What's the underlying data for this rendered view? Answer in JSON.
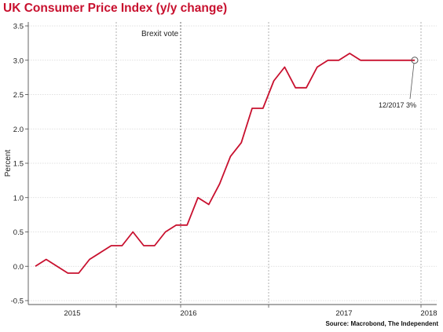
{
  "chart_data": {
    "type": "line",
    "title": "UK Consumer Price Index (y/y change)",
    "xlabel": "",
    "ylabel": "Percent",
    "ylim": [
      -0.5,
      3.5
    ],
    "yticks": [
      "3.5",
      "3.0",
      "2.5",
      "2.0",
      "1.5",
      "1.0",
      "0.5",
      "0.0",
      "-0.5"
    ],
    "ytick_values": [
      3.5,
      3.0,
      2.5,
      2.0,
      1.5,
      1.0,
      0.5,
      0.0,
      -0.5
    ],
    "xticks": [
      {
        "label": "2015",
        "value": 2015.0
      },
      {
        "label": "2016",
        "value": 2016.0
      },
      {
        "label": "2017",
        "value": 2017.0
      },
      {
        "label": "2018",
        "value": 2018.0
      }
    ],
    "year_dividers": [
      2014.5,
      2015.5,
      2016.5,
      2017.5
    ],
    "grid": true,
    "legend": "none",
    "series": [
      {
        "color": "#c8102e",
        "x": [
          2014.0,
          2014.083,
          2014.167,
          2014.25,
          2014.333,
          2014.417,
          2014.5,
          2014.583,
          2014.667,
          2014.75,
          2014.833,
          2014.917,
          2015.0,
          2015.083,
          2015.167,
          2015.25,
          2015.333,
          2015.417,
          2015.5,
          2015.583,
          2015.667,
          2015.75,
          2015.833,
          2015.917,
          2016.0,
          2016.083,
          2016.167,
          2016.25,
          2016.333,
          2016.417,
          2016.5,
          2016.583,
          2016.667,
          2016.75,
          2016.833,
          2016.917
        ],
        "y": [
          0.0,
          0.1,
          0.0,
          -0.1,
          -0.1,
          0.1,
          0.2,
          0.3,
          0.3,
          0.5,
          0.3,
          0.3,
          0.5,
          0.6,
          0.6,
          1.0,
          0.9,
          1.2,
          1.6,
          1.8,
          2.3,
          2.3,
          2.7,
          2.9,
          2.6,
          2.6,
          2.9,
          3.0,
          3.0,
          3.1,
          3.0,
          3.0,
          3.0,
          3.0,
          3.0,
          3.0
        ]
      }
    ],
    "annotations": [
      {
        "text": "Brexit vote",
        "x": 2015.5
      },
      {
        "text": "12/2017 3%",
        "x": 2016.917,
        "y": 3.0
      }
    ],
    "source": "Source: Macrobond, The Independent"
  }
}
